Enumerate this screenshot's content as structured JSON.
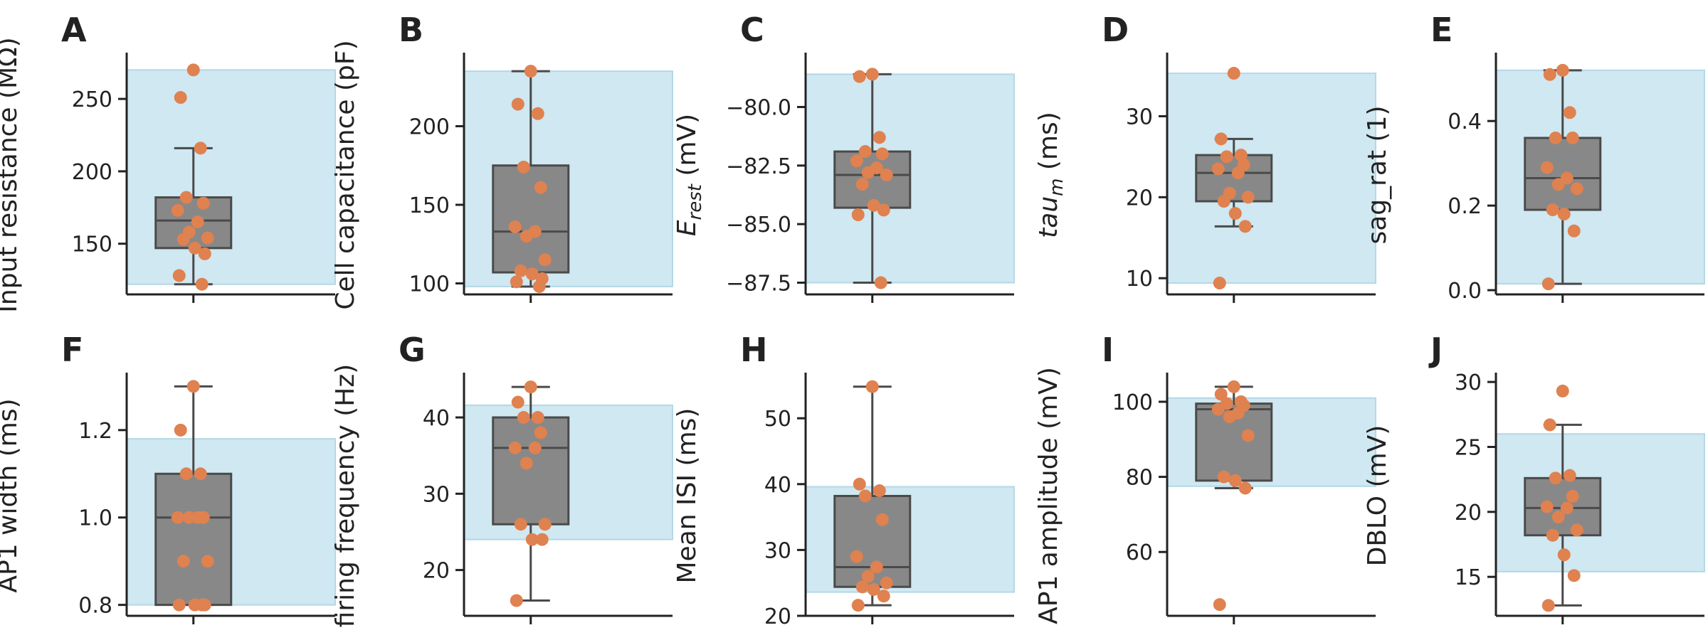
{
  "colors": {
    "band": "#cfe8f1",
    "band_edge": "#b4d8e6",
    "box_fill": "#888888",
    "box_line": "#4a4a4a",
    "point": "#e08150",
    "axis": "#222222"
  },
  "chart_data": [
    {
      "letter": "A",
      "type": "box-strip",
      "ylabel": "Input resistance (MΩ)",
      "ylabel_sub": "",
      "ylabel_suffix": "",
      "ylim": [
        115,
        280
      ],
      "yticks": [
        150,
        200,
        250
      ],
      "tick_decimals": 0,
      "band": [
        122,
        270
      ],
      "box": {
        "whisker_low": 122,
        "q1": 147,
        "median": 166,
        "q3": 182,
        "whisker_high": 216
      },
      "points": [
        270,
        251,
        216,
        182,
        178,
        173,
        165,
        158,
        154,
        153,
        147,
        143,
        128,
        122
      ]
    },
    {
      "letter": "B",
      "type": "box-strip",
      "ylabel": "Cell capacitance (pF)",
      "ylabel_sub": "",
      "ylabel_suffix": "",
      "ylim": [
        93,
        245
      ],
      "yticks": [
        100,
        150,
        200
      ],
      "tick_decimals": 0,
      "band": [
        98,
        235
      ],
      "box": {
        "whisker_low": 98,
        "q1": 107,
        "median": 133,
        "q3": 175,
        "whisker_high": 235
      },
      "points": [
        235,
        214,
        208,
        174,
        161,
        136,
        133,
        130,
        115,
        108,
        106,
        103,
        101,
        98
      ]
    },
    {
      "letter": "C",
      "type": "box-strip",
      "ylabel": "E",
      "ylabel_sub": "rest",
      "ylabel_suffix": " (mV)",
      "ylim": [
        -88.0,
        -77.8
      ],
      "yticks": [
        -87.5,
        -85.0,
        -82.5,
        -80.0
      ],
      "tick_decimals": 1,
      "band": [
        -87.5,
        -78.6
      ],
      "box": {
        "whisker_low": -87.5,
        "q1": -84.3,
        "median": -82.9,
        "q3": -81.9,
        "whisker_high": -78.6
      },
      "points": [
        -78.6,
        -78.7,
        -81.3,
        -81.9,
        -82.0,
        -82.3,
        -82.6,
        -82.8,
        -82.9,
        -83.3,
        -84.2,
        -84.4,
        -84.6,
        -87.5
      ]
    },
    {
      "letter": "D",
      "type": "box-strip",
      "ylabel": "tau",
      "ylabel_sub": "m",
      "ylabel_suffix": " (ms)",
      "ylim": [
        8,
        37.5
      ],
      "yticks": [
        10,
        20,
        30
      ],
      "tick_decimals": 0,
      "band": [
        9.4,
        35.3
      ],
      "box": {
        "whisker_low": 16.4,
        "q1": 19.5,
        "median": 23.0,
        "q3": 25.2,
        "whisker_high": 27.2
      },
      "points": [
        35.3,
        27.2,
        25.2,
        25.0,
        24.0,
        23.5,
        23.0,
        20.5,
        20.0,
        19.5,
        18.0,
        16.4,
        9.4
      ]
    },
    {
      "letter": "E",
      "type": "box-strip",
      "ylabel": "sag_rat (1)",
      "ylabel_sub": "",
      "ylabel_suffix": "",
      "ylim": [
        -0.01,
        0.555
      ],
      "yticks": [
        0.0,
        0.2,
        0.4
      ],
      "tick_decimals": 1,
      "band": [
        0.015,
        0.52
      ],
      "box": {
        "whisker_low": 0.015,
        "q1": 0.19,
        "median": 0.265,
        "q3": 0.36,
        "whisker_high": 0.52
      },
      "points": [
        0.52,
        0.51,
        0.42,
        0.36,
        0.36,
        0.29,
        0.265,
        0.25,
        0.24,
        0.19,
        0.18,
        0.14,
        0.015
      ]
    },
    {
      "letter": "F",
      "type": "box-strip",
      "ylabel": "AP1 width (ms)",
      "ylabel_sub": "",
      "ylabel_suffix": "",
      "ylim": [
        0.775,
        1.325
      ],
      "yticks": [
        0.8,
        1.0,
        1.2
      ],
      "tick_decimals": 1,
      "band": [
        0.8,
        1.18
      ],
      "box": {
        "whisker_low": 0.8,
        "q1": 0.8,
        "median": 1.0,
        "q3": 1.1,
        "whisker_high": 1.3
      },
      "points": [
        1.3,
        1.2,
        1.1,
        1.1,
        1.0,
        1.0,
        1.0,
        1.0,
        0.9,
        0.9,
        0.8,
        0.8,
        0.8,
        0.8
      ]
    },
    {
      "letter": "G",
      "type": "box-strip",
      "ylabel": "firing frequency (Hz)",
      "ylabel_sub": "",
      "ylabel_suffix": "",
      "ylim": [
        14,
        45.5
      ],
      "yticks": [
        20,
        30,
        40
      ],
      "tick_decimals": 0,
      "band": [
        24,
        41.6
      ],
      "box": {
        "whisker_low": 16,
        "q1": 26,
        "median": 36,
        "q3": 40,
        "whisker_high": 44
      },
      "points": [
        44,
        42,
        40,
        40,
        38,
        36,
        36,
        34,
        26,
        26,
        24,
        24,
        16
      ]
    },
    {
      "letter": "H",
      "type": "box-strip",
      "ylabel": "Mean ISI (ms)",
      "ylabel_sub": "",
      "ylabel_suffix": "",
      "ylim": [
        20,
        56.5
      ],
      "yticks": [
        20,
        30,
        40,
        50
      ],
      "tick_decimals": 0,
      "band": [
        23.6,
        39.6
      ],
      "box": {
        "whisker_low": 21.6,
        "q1": 24.4,
        "median": 27.4,
        "q3": 38.2,
        "whisker_high": 54.8
      },
      "points": [
        54.8,
        40.0,
        39.0,
        38.2,
        34.6,
        29.0,
        27.4,
        26.0,
        25.0,
        24.4,
        24.0,
        23.0,
        21.6
      ]
    },
    {
      "letter": "I",
      "type": "box-strip",
      "ylabel": "AP1 amplitude (mV)",
      "ylabel_sub": "",
      "ylabel_suffix": "",
      "ylim": [
        43,
        107
      ],
      "yticks": [
        60,
        80,
        100
      ],
      "tick_decimals": 0,
      "band": [
        77.5,
        101
      ],
      "box": {
        "whisker_low": 77.0,
        "q1": 79.0,
        "median": 98.0,
        "q3": 99.5,
        "whisker_high": 104
      },
      "points": [
        104,
        102,
        100,
        99.5,
        99,
        98,
        97,
        96,
        91,
        80,
        79,
        77,
        46
      ]
    },
    {
      "letter": "J",
      "type": "box-strip",
      "ylabel": "DBLO (mV)",
      "ylabel_sub": "",
      "ylabel_suffix": "",
      "ylim": [
        12,
        30.5
      ],
      "yticks": [
        15,
        20,
        25,
        30
      ],
      "tick_decimals": 0,
      "band": [
        15.4,
        26.0
      ],
      "box": {
        "whisker_low": 12.8,
        "q1": 18.2,
        "median": 20.3,
        "q3": 22.6,
        "whisker_high": 26.7
      },
      "points": [
        29.3,
        26.7,
        22.8,
        22.6,
        21.2,
        20.4,
        20.3,
        19.6,
        18.6,
        18.2,
        16.7,
        15.1,
        12.8
      ]
    }
  ]
}
